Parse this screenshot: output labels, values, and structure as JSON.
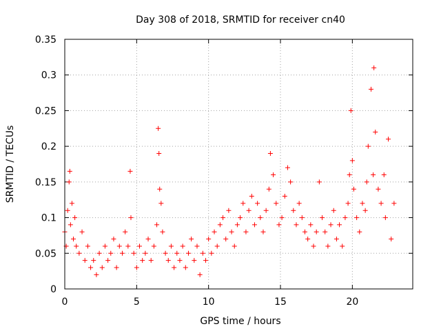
{
  "chart_data": {
    "type": "scatter",
    "title": "Day 308 of 2018, SRMTID for receiver cn40",
    "xlabel": "GPS time / hours",
    "ylabel": "SRMTID / TECUs",
    "xlim": [
      0,
      24.2
    ],
    "ylim": [
      0,
      0.35
    ],
    "x_ticks": [
      0,
      5,
      10,
      15,
      20
    ],
    "x_tick_labels": [
      "0",
      "5",
      "10",
      "15",
      "20"
    ],
    "y_ticks": [
      0,
      0.05,
      0.1,
      0.15,
      0.2,
      0.25,
      0.3,
      0.35
    ],
    "y_tick_labels": [
      "0",
      "0.05",
      "0.1",
      "0.15",
      "0.2",
      "0.25",
      "0.3",
      "0.35"
    ],
    "grid": true,
    "marker": "+",
    "color": "#ff0000",
    "series": [
      {
        "name": "SRMTID",
        "x": [
          0.0,
          0.1,
          0.2,
          0.3,
          0.35,
          0.4,
          0.5,
          0.6,
          0.7,
          0.8,
          1.0,
          1.2,
          1.4,
          1.6,
          1.8,
          2.0,
          2.2,
          2.4,
          2.6,
          2.8,
          3.0,
          3.2,
          3.4,
          3.6,
          3.8,
          4.0,
          4.2,
          4.4,
          4.55,
          4.6,
          4.8,
          5.0,
          5.2,
          5.4,
          5.6,
          5.8,
          6.0,
          6.2,
          6.4,
          6.5,
          6.55,
          6.6,
          6.7,
          6.8,
          7.0,
          7.2,
          7.4,
          7.6,
          7.8,
          8.0,
          8.2,
          8.4,
          8.6,
          8.8,
          9.0,
          9.2,
          9.4,
          9.6,
          9.8,
          10.0,
          10.2,
          10.4,
          10.6,
          10.8,
          11.0,
          11.2,
          11.4,
          11.6,
          11.8,
          12.0,
          12.2,
          12.4,
          12.6,
          12.8,
          13.0,
          13.2,
          13.4,
          13.6,
          13.8,
          14.0,
          14.2,
          14.3,
          14.5,
          14.7,
          14.9,
          15.1,
          15.3,
          15.5,
          15.7,
          15.9,
          16.1,
          16.3,
          16.5,
          16.7,
          16.9,
          17.1,
          17.3,
          17.5,
          17.7,
          17.9,
          18.1,
          18.3,
          18.5,
          18.7,
          18.9,
          19.1,
          19.3,
          19.5,
          19.7,
          19.8,
          19.9,
          20.0,
          20.1,
          20.3,
          20.5,
          20.7,
          20.9,
          21.0,
          21.1,
          21.3,
          21.45,
          21.5,
          21.6,
          21.8,
          22.0,
          22.2,
          22.3,
          22.5,
          22.7,
          22.9
        ],
        "y": [
          0.08,
          0.06,
          0.11,
          0.15,
          0.165,
          0.09,
          0.12,
          0.07,
          0.1,
          0.06,
          0.05,
          0.08,
          0.04,
          0.06,
          0.03,
          0.04,
          0.02,
          0.05,
          0.03,
          0.06,
          0.04,
          0.05,
          0.07,
          0.03,
          0.06,
          0.05,
          0.08,
          0.06,
          0.165,
          0.1,
          0.05,
          0.03,
          0.06,
          0.04,
          0.05,
          0.07,
          0.04,
          0.06,
          0.09,
          0.225,
          0.19,
          0.14,
          0.12,
          0.08,
          0.05,
          0.04,
          0.06,
          0.03,
          0.05,
          0.04,
          0.06,
          0.03,
          0.05,
          0.07,
          0.04,
          0.06,
          0.02,
          0.05,
          0.04,
          0.07,
          0.05,
          0.08,
          0.06,
          0.09,
          0.1,
          0.07,
          0.11,
          0.08,
          0.06,
          0.09,
          0.1,
          0.12,
          0.08,
          0.11,
          0.13,
          0.09,
          0.12,
          0.1,
          0.08,
          0.11,
          0.14,
          0.19,
          0.16,
          0.12,
          0.09,
          0.1,
          0.13,
          0.17,
          0.15,
          0.11,
          0.09,
          0.12,
          0.1,
          0.08,
          0.07,
          0.09,
          0.06,
          0.08,
          0.15,
          0.1,
          0.08,
          0.06,
          0.09,
          0.11,
          0.07,
          0.09,
          0.06,
          0.1,
          0.12,
          0.16,
          0.25,
          0.18,
          0.14,
          0.1,
          0.08,
          0.12,
          0.11,
          0.15,
          0.2,
          0.28,
          0.16,
          0.31,
          0.22,
          0.14,
          0.12,
          0.16,
          0.1,
          0.21,
          0.07,
          0.12
        ]
      }
    ]
  }
}
